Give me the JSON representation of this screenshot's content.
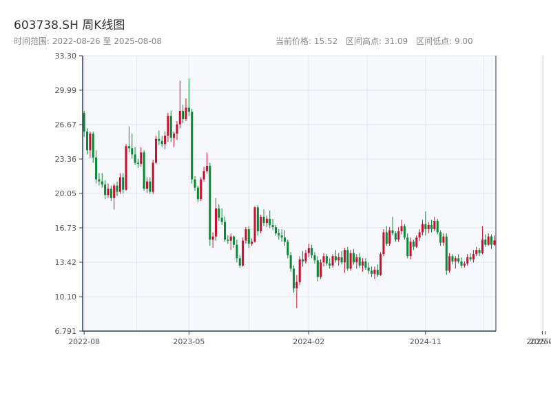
{
  "header": {
    "title": "603738.SH 周K线图",
    "range_label": "时间范围: 2022-08-26 至 2025-08-08",
    "current_price_label": "当前价格: 15.52",
    "high_label": "区间高点: 31.09",
    "low_label": "区间低点: 9.00"
  },
  "colors": {
    "up": "#c8102e",
    "down": "#0a8a36",
    "plot_bg": "#f6f8fb",
    "grid": "#e3e7ee",
    "axis": "#2b3a4a"
  },
  "chart_data": {
    "type": "candlestick",
    "title": "603738.SH 周K线图",
    "ylim": [
      6.791,
      33.3
    ],
    "yticks": [
      "6.791",
      "10.10",
      "13.42",
      "16.73",
      "20.05",
      "23.36",
      "26.67",
      "29.99",
      "33.30"
    ],
    "xticks": [
      "2022-08",
      "2023-05",
      "2024-02",
      "2024-11",
      "2025-07",
      "2025-08"
    ],
    "grid": true,
    "x_is_week_index": true,
    "ohlc": [
      [
        27.8,
        28.0,
        25.5,
        26.0
      ],
      [
        26.0,
        26.3,
        23.8,
        24.2
      ],
      [
        24.2,
        26.0,
        23.5,
        25.8
      ],
      [
        25.8,
        26.0,
        23.0,
        23.5
      ],
      [
        23.5,
        24.2,
        21.0,
        21.4
      ],
      [
        21.4,
        22.0,
        20.8,
        21.2
      ],
      [
        21.2,
        22.0,
        20.6,
        20.9
      ],
      [
        20.9,
        21.3,
        19.5,
        19.9
      ],
      [
        19.9,
        21.0,
        19.6,
        20.5
      ],
      [
        20.5,
        20.8,
        19.3,
        19.6
      ],
      [
        19.6,
        21.0,
        18.5,
        20.8
      ],
      [
        20.8,
        21.2,
        19.8,
        20.2
      ],
      [
        20.2,
        22.0,
        20.0,
        21.6
      ],
      [
        21.6,
        22.0,
        20.0,
        20.4
      ],
      [
        20.4,
        24.8,
        20.3,
        24.6
      ],
      [
        24.6,
        26.5,
        24.0,
        24.4
      ],
      [
        24.4,
        25.8,
        23.4,
        23.8
      ],
      [
        23.8,
        24.5,
        22.8,
        23.0
      ],
      [
        23.0,
        23.4,
        22.5,
        22.9
      ],
      [
        22.9,
        24.5,
        22.6,
        24.0
      ],
      [
        24.0,
        24.2,
        20.3,
        20.5
      ],
      [
        20.5,
        21.6,
        20.1,
        21.2
      ],
      [
        21.2,
        21.6,
        20.0,
        20.2
      ],
      [
        20.2,
        23.3,
        20.0,
        23.0
      ],
      [
        23.0,
        25.6,
        22.9,
        25.3
      ],
      [
        25.3,
        26.1,
        24.7,
        25.1
      ],
      [
        25.1,
        25.6,
        24.5,
        24.8
      ],
      [
        24.8,
        26.0,
        24.3,
        25.6
      ],
      [
        25.6,
        27.8,
        25.0,
        27.5
      ],
      [
        27.5,
        28.0,
        25.0,
        25.4
      ],
      [
        25.4,
        26.0,
        24.5,
        25.8
      ],
      [
        25.8,
        27.0,
        25.2,
        26.7
      ],
      [
        26.7,
        30.9,
        26.3,
        28.0
      ],
      [
        28.0,
        28.6,
        26.8,
        27.2
      ],
      [
        27.2,
        29.2,
        27.0,
        28.3
      ],
      [
        28.3,
        31.09,
        27.5,
        27.9
      ],
      [
        27.9,
        28.2,
        21.0,
        21.4
      ],
      [
        21.4,
        21.7,
        20.3,
        20.6
      ],
      [
        20.6,
        20.8,
        19.2,
        19.5
      ],
      [
        19.5,
        21.6,
        19.3,
        21.4
      ],
      [
        21.4,
        22.6,
        21.2,
        22.2
      ],
      [
        22.2,
        24.0,
        22.0,
        22.7
      ],
      [
        22.7,
        23.0,
        15.0,
        15.6
      ],
      [
        15.6,
        16.3,
        14.8,
        15.9
      ],
      [
        15.9,
        19.6,
        15.5,
        18.6
      ],
      [
        18.6,
        19.0,
        17.4,
        17.7
      ],
      [
        17.7,
        18.6,
        17.0,
        17.3
      ],
      [
        17.3,
        17.8,
        15.4,
        15.6
      ],
      [
        15.6,
        16.0,
        15.2,
        15.5
      ],
      [
        15.5,
        16.2,
        14.6,
        15.9
      ],
      [
        15.9,
        16.0,
        14.8,
        15.1
      ],
      [
        15.1,
        15.6,
        13.4,
        13.8
      ],
      [
        13.8,
        14.1,
        12.9,
        13.1
      ],
      [
        13.1,
        15.8,
        13.0,
        15.5
      ],
      [
        15.5,
        16.8,
        15.2,
        16.6
      ],
      [
        16.6,
        16.9,
        14.8,
        15.2
      ],
      [
        15.2,
        15.7,
        15.0,
        15.4
      ],
      [
        15.4,
        18.8,
        15.3,
        18.7
      ],
      [
        18.7,
        18.9,
        16.0,
        16.4
      ],
      [
        16.4,
        18.0,
        16.2,
        17.8
      ],
      [
        17.8,
        18.5,
        16.9,
        17.2
      ],
      [
        17.2,
        17.9,
        16.8,
        17.6
      ],
      [
        17.6,
        18.4,
        16.7,
        17.0
      ],
      [
        17.0,
        17.6,
        16.5,
        16.8
      ],
      [
        16.8,
        17.0,
        16.0,
        16.2
      ],
      [
        16.2,
        16.6,
        15.6,
        16.0
      ],
      [
        16.0,
        16.6,
        15.4,
        15.8
      ],
      [
        15.8,
        16.5,
        15.0,
        15.4
      ],
      [
        15.4,
        15.6,
        13.8,
        14.1
      ],
      [
        14.1,
        14.4,
        12.5,
        12.8
      ],
      [
        12.8,
        13.1,
        10.5,
        10.9
      ],
      [
        10.9,
        12.2,
        9.0,
        11.5
      ],
      [
        11.5,
        14.0,
        11.2,
        13.7
      ],
      [
        13.7,
        14.5,
        13.0,
        13.5
      ],
      [
        13.5,
        14.6,
        13.3,
        14.3
      ],
      [
        14.3,
        15.2,
        13.9,
        14.8
      ],
      [
        14.8,
        15.1,
        13.8,
        14.1
      ],
      [
        14.1,
        14.4,
        13.3,
        13.6
      ],
      [
        13.6,
        14.0,
        11.6,
        12.0
      ],
      [
        12.0,
        13.7,
        11.8,
        13.4
      ],
      [
        13.4,
        14.3,
        13.0,
        14.0
      ],
      [
        14.0,
        14.2,
        13.1,
        13.3
      ],
      [
        13.3,
        13.8,
        12.8,
        13.1
      ],
      [
        13.1,
        14.2,
        12.9,
        14.0
      ],
      [
        14.0,
        14.6,
        13.4,
        13.6
      ],
      [
        13.6,
        14.3,
        13.1,
        13.9
      ],
      [
        13.9,
        14.5,
        13.2,
        13.4
      ],
      [
        13.4,
        14.8,
        12.4,
        14.6
      ],
      [
        14.6,
        14.9,
        12.6,
        12.8
      ],
      [
        12.8,
        14.6,
        12.6,
        14.3
      ],
      [
        14.3,
        14.7,
        13.2,
        13.4
      ],
      [
        13.4,
        14.2,
        12.8,
        13.9
      ],
      [
        13.9,
        14.3,
        12.9,
        13.1
      ],
      [
        13.1,
        13.8,
        12.5,
        13.5
      ],
      [
        13.5,
        13.8,
        12.7,
        12.9
      ],
      [
        12.9,
        13.4,
        12.3,
        12.6
      ],
      [
        12.6,
        13.0,
        12.0,
        12.3
      ],
      [
        12.3,
        13.0,
        11.8,
        12.7
      ],
      [
        12.7,
        13.2,
        12.0,
        12.2
      ],
      [
        12.2,
        14.4,
        12.1,
        14.2
      ],
      [
        14.2,
        16.6,
        14.0,
        16.3
      ],
      [
        16.3,
        16.9,
        15.0,
        15.2
      ],
      [
        15.2,
        16.8,
        15.0,
        16.5
      ],
      [
        16.5,
        17.8,
        16.0,
        16.2
      ],
      [
        16.2,
        16.4,
        15.4,
        15.6
      ],
      [
        15.6,
        16.8,
        15.4,
        16.4
      ],
      [
        16.4,
        17.5,
        16.1,
        16.9
      ],
      [
        16.9,
        17.1,
        15.6,
        15.8
      ],
      [
        15.8,
        16.2,
        13.8,
        14.0
      ],
      [
        14.0,
        15.8,
        13.7,
        15.4
      ],
      [
        15.4,
        15.6,
        14.6,
        14.9
      ],
      [
        14.9,
        16.0,
        14.8,
        15.8
      ],
      [
        15.8,
        16.6,
        15.5,
        16.3
      ],
      [
        16.3,
        17.5,
        16.0,
        17.1
      ],
      [
        17.1,
        18.3,
        16.0,
        16.6
      ],
      [
        16.6,
        17.3,
        16.2,
        17.0
      ],
      [
        17.0,
        17.5,
        16.3,
        16.6
      ],
      [
        16.6,
        17.8,
        16.4,
        17.4
      ],
      [
        17.4,
        17.6,
        16.1,
        16.3
      ],
      [
        16.3,
        16.5,
        15.0,
        15.3
      ],
      [
        15.3,
        16.2,
        15.0,
        15.9
      ],
      [
        15.9,
        16.2,
        12.2,
        12.6
      ],
      [
        12.6,
        14.3,
        12.4,
        14.0
      ],
      [
        14.0,
        14.2,
        13.2,
        13.5
      ],
      [
        13.5,
        14.0,
        12.8,
        13.8
      ],
      [
        13.8,
        14.2,
        13.3,
        13.5
      ],
      [
        13.5,
        13.9,
        12.9,
        13.1
      ],
      [
        13.1,
        13.5,
        12.9,
        13.3
      ],
      [
        13.3,
        14.2,
        13.1,
        13.9
      ],
      [
        13.9,
        14.3,
        13.5,
        13.7
      ],
      [
        13.7,
        14.6,
        13.4,
        14.2
      ],
      [
        14.2,
        14.9,
        14.0,
        14.6
      ],
      [
        14.6,
        14.8,
        14.0,
        14.3
      ],
      [
        14.3,
        16.9,
        14.2,
        15.6
      ],
      [
        15.6,
        16.1,
        14.9,
        15.1
      ],
      [
        15.1,
        16.2,
        15.0,
        15.9
      ],
      [
        15.9,
        16.1,
        14.7,
        15.1
      ],
      [
        15.1,
        16.0,
        15.0,
        15.52
      ]
    ]
  }
}
